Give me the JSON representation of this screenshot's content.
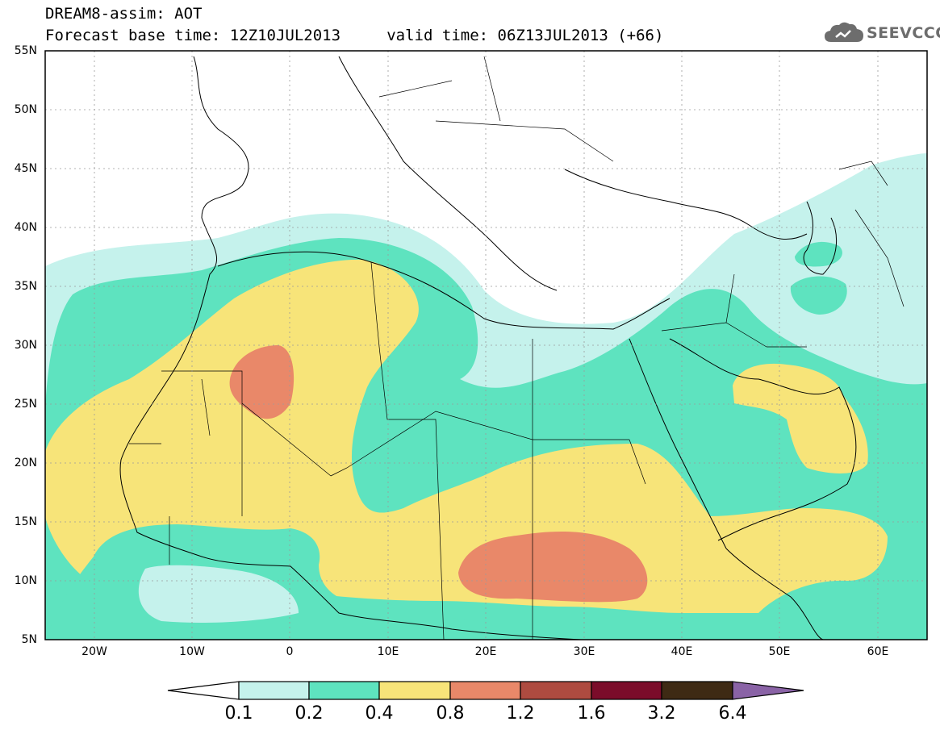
{
  "header": {
    "line1": "DREAM8-assim: AOT",
    "line2": "Forecast base time: 12Z10JUL2013     valid time: 06Z13JUL2013 (+66)"
  },
  "logo": {
    "text": "SEEVCCC",
    "icon": "cloud-icon"
  },
  "map": {
    "lat_labels": [
      "55N",
      "50N",
      "45N",
      "40N",
      "35N",
      "30N",
      "25N",
      "20N",
      "15N",
      "10N",
      "5N"
    ],
    "lon_labels": [
      "20W",
      "10W",
      "0",
      "10E",
      "20E",
      "30E",
      "40E",
      "50E",
      "60E"
    ]
  },
  "colorbar": {
    "labels": [
      "0.1",
      "0.2",
      "0.4",
      "0.8",
      "1.2",
      "1.6",
      "3.2",
      "6.4"
    ],
    "colors": [
      "#ffffff",
      "#c5f2ec",
      "#5ee3bf",
      "#f7e479",
      "#e98869",
      "#ae4b40",
      "#7b0c2a",
      "#3e2a14",
      "#8a63a6"
    ]
  }
}
